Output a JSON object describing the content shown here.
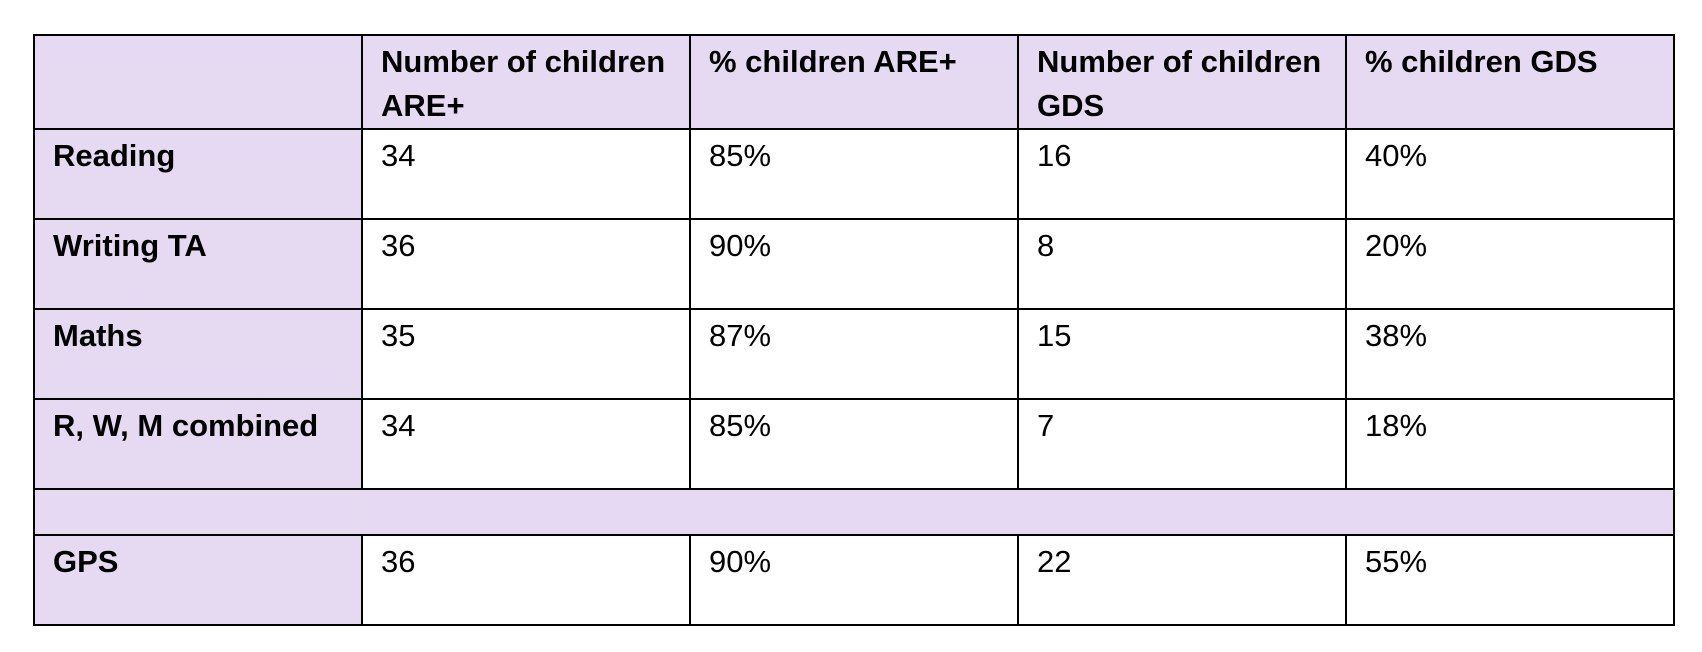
{
  "table": {
    "header": {
      "corner": "",
      "columns": [
        "Number of children ARE+",
        "% children ARE+",
        "Number of children GDS",
        "% children GDS"
      ]
    },
    "rows": [
      {
        "label": "Reading",
        "values": [
          "34",
          "85%",
          "16",
          "40%"
        ]
      },
      {
        "label": "Writing TA",
        "values": [
          "36",
          "90%",
          "8",
          "20%"
        ]
      },
      {
        "label": "Maths",
        "values": [
          "35",
          "87%",
          "15",
          "38%"
        ]
      },
      {
        "label": "R, W, M combined",
        "values": [
          "34",
          "85%",
          "7",
          "18%"
        ]
      }
    ],
    "extra_rows": [
      {
        "label": "GPS",
        "values": [
          "36",
          "90%",
          "22",
          "55%"
        ]
      }
    ]
  },
  "colors": {
    "header_shade": "#e6daf2",
    "border": "#000000"
  }
}
